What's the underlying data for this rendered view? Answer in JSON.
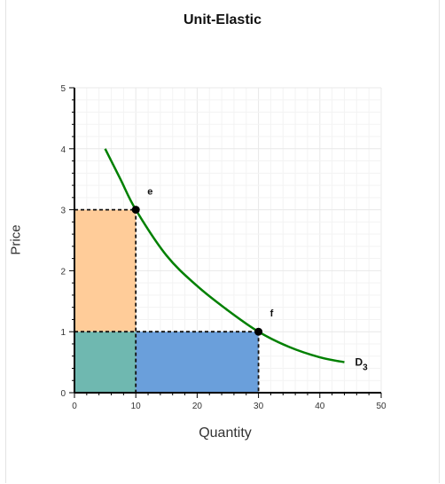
{
  "chart_data": {
    "type": "line",
    "title": "Unit-Elastic",
    "xlabel": "Quantity",
    "ylabel": "Price",
    "xlim": [
      0,
      50
    ],
    "ylim": [
      0,
      5
    ],
    "x_ticks": [
      "0",
      "10",
      "20",
      "30",
      "40",
      "50"
    ],
    "y_ticks": [
      "0",
      "1",
      "2",
      "3",
      "4",
      "5"
    ],
    "grid": true,
    "series": [
      {
        "name": "D",
        "name_subscript": "3",
        "color": "#008000",
        "x": [
          5,
          7.5,
          10,
          15,
          20,
          25,
          30,
          35,
          40,
          44
        ],
        "y": [
          4,
          3.5,
          3,
          2.25,
          1.75,
          1.35,
          1,
          0.75,
          0.58,
          0.5
        ]
      }
    ],
    "points": [
      {
        "label": "e",
        "x": 10,
        "y": 3
      },
      {
        "label": "f",
        "x": 30,
        "y": 1
      }
    ],
    "regions": [
      {
        "name": "orange-rectangle",
        "x": [
          0,
          10
        ],
        "y": [
          1,
          3
        ],
        "color": "#ffcc99"
      },
      {
        "name": "teal-rectangle",
        "x": [
          0,
          10
        ],
        "y": [
          0,
          1
        ],
        "color": "#6fb8b0"
      },
      {
        "name": "blue-rectangle",
        "x": [
          10,
          30
        ],
        "y": [
          0,
          1
        ],
        "color": "#6a9fdb"
      }
    ]
  }
}
